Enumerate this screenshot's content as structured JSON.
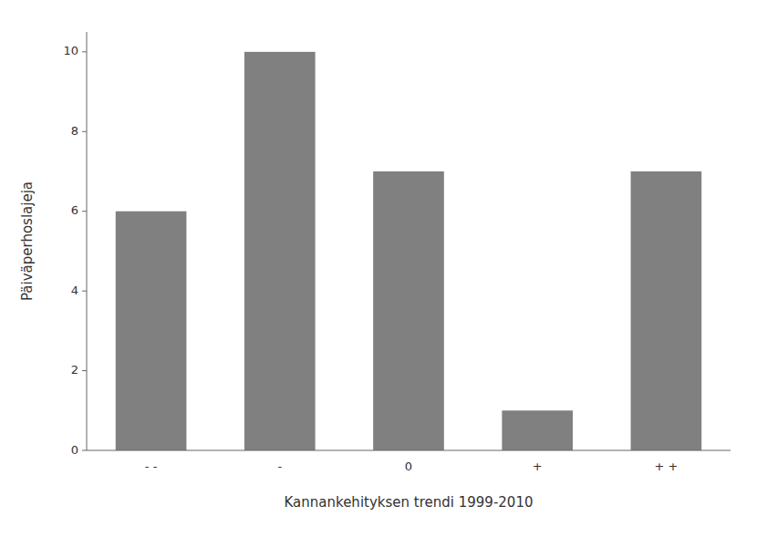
{
  "chart_data": {
    "type": "bar",
    "xlabel": "Kannankehityksen trendi 1999-2010",
    "ylabel": "Päiväperhoslajeja",
    "categories": [
      "- -",
      "-",
      "0",
      "+",
      "+ +"
    ],
    "values": [
      6,
      10,
      7,
      1,
      7
    ],
    "color": "#808080",
    "ylim": [
      0,
      10.5
    ],
    "yticks": [
      0,
      2,
      4,
      6,
      8,
      10
    ],
    "grid": false
  }
}
